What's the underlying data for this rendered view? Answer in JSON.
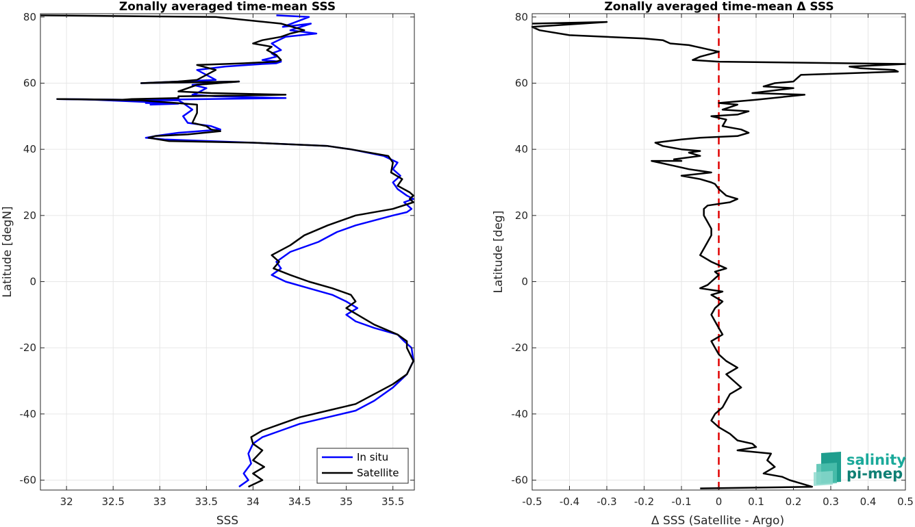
{
  "chart_data": [
    {
      "type": "line",
      "title": "Zonally averaged time-mean SSS",
      "xlabel": "SSS",
      "ylabel": "Latitude [degN]",
      "xlim": [
        31.72,
        35.73
      ],
      "ylim": [
        -63,
        81
      ],
      "xticks": [
        32,
        32.5,
        33,
        33.5,
        34,
        34.5,
        35,
        35.5
      ],
      "yticks": [
        -60,
        -40,
        -20,
        0,
        20,
        40,
        60,
        80
      ],
      "grid": true,
      "legend": "bottom-right",
      "orientation": "latitude on y-axis",
      "series": [
        {
          "name": "In situ",
          "color": "#0000ff",
          "x": [
            34.25,
            34.6,
            34.32,
            34.62,
            34.4,
            34.68,
            34.35,
            34.2,
            34.3,
            34.2,
            34.25,
            34.1,
            34.3,
            34.25,
            34.1,
            33.95,
            33.7,
            33.4,
            33.6,
            32.8,
            33.85,
            33.35,
            33.5,
            33.4,
            33.35,
            33.6,
            34.35,
            32.95,
            32.85,
            33,
            32.85,
            33.2,
            32.9,
            33.1,
            32.3,
            31.9,
            33.2,
            33.25,
            33.35,
            33.25,
            33.3,
            33.55,
            33.65,
            33.2,
            32.95,
            32.85,
            33.05,
            34.0,
            34.8,
            35.05,
            35.4,
            35.55,
            35.5,
            35.58,
            35.5,
            35.55,
            35.65,
            35.72,
            35.62,
            35.7,
            35.65,
            35.5,
            35.1,
            34.9,
            34.7,
            34.4,
            34.25,
            34.3,
            34.2,
            34.35,
            34.6,
            34.85,
            35.0,
            35.12,
            35.0,
            35.1,
            35.3,
            35.55,
            35.62,
            35.7,
            35.72,
            35.65,
            35.5,
            35.3,
            35.1,
            34.8,
            34.5,
            34.3,
            34.1,
            34.0,
            33.95,
            33.98,
            33.9,
            33.95,
            33.85
          ],
          "y": [
            80.5,
            80,
            77,
            78,
            76,
            75,
            74,
            72,
            70,
            69,
            68,
            67,
            66.5,
            66,
            65.8,
            65.5,
            65,
            64,
            61,
            60,
            60.5,
            59.5,
            58.5,
            57,
            56.5,
            56,
            55.5,
            55,
            54.8,
            54.5,
            54,
            53.8,
            53.5,
            54,
            55,
            55.2,
            54.8,
            54,
            52,
            50,
            48,
            47,
            46,
            45,
            44,
            43.5,
            43,
            42,
            41,
            40,
            38,
            36,
            34,
            32,
            30,
            28,
            26,
            25,
            24,
            22,
            21,
            20,
            17,
            15,
            12,
            9,
            6,
            4,
            2,
            0,
            -2,
            -4,
            -6,
            -8,
            -10,
            -12,
            -14,
            -16,
            -18,
            -20,
            -24,
            -28,
            -32,
            -36,
            -39,
            -41,
            -43,
            -45,
            -47,
            -49,
            -52,
            -55,
            -58,
            -60,
            -62
          ]
        },
        {
          "name": "Satellite",
          "color": "#000000",
          "x": [
            31.72,
            33.6,
            34.3,
            34.55,
            34.4,
            34.3,
            34.1,
            34.0,
            34.2,
            34.15,
            34.25,
            34.3,
            34.25,
            33.9,
            33.7,
            33.4,
            33.6,
            33.4,
            33.2,
            32.8,
            33.85,
            33.4,
            33.3,
            33.25,
            33.2,
            33.55,
            34.35,
            33.2,
            33.2,
            32.7,
            32.6,
            31.9,
            32.8,
            33.4,
            33.4,
            33.35,
            33.5,
            33.55,
            33.65,
            33.3,
            32.95,
            32.88,
            33.1,
            34.0,
            34.8,
            35.05,
            35.45,
            35.5,
            35.48,
            35.6,
            35.55,
            35.68,
            35.72,
            35.68,
            35.72,
            35.5,
            35.1,
            34.8,
            34.55,
            34.4,
            34.2,
            34.28,
            34.22,
            34.4,
            34.6,
            34.85,
            35.05,
            35.1,
            35.0,
            35.12,
            35.3,
            35.55,
            35.65,
            35.65,
            35.72,
            35.65,
            35.5,
            35.3,
            35.1,
            34.8,
            34.5,
            34.3,
            34.1,
            33.98,
            34.0,
            34.1,
            34.0,
            34.12,
            34.0,
            34.1,
            33.95
          ],
          "y": [
            80.5,
            80,
            78,
            76,
            75,
            74,
            73,
            72,
            71,
            70,
            68.5,
            67,
            66.5,
            66,
            65.8,
            65.5,
            64,
            61,
            60.5,
            60,
            60.5,
            59.5,
            58.5,
            58,
            57.5,
            57,
            56.5,
            56,
            55.5,
            55.2,
            55,
            55.2,
            54.8,
            53.5,
            51,
            48,
            47,
            46,
            45.5,
            44.5,
            44,
            43.5,
            42.5,
            42,
            41,
            40,
            38,
            36,
            33,
            31,
            29,
            27,
            26,
            25,
            24,
            22,
            20,
            17,
            14,
            11,
            8,
            6,
            4,
            2,
            0,
            -2,
            -4,
            -6,
            -8,
            -10,
            -13,
            -16,
            -18,
            -20,
            -24,
            -28,
            -31,
            -34,
            -37,
            -39,
            -41,
            -43,
            -45,
            -47,
            -49,
            -51,
            -54,
            -56,
            -58,
            -60,
            -62
          ]
        }
      ]
    },
    {
      "type": "line",
      "title": "Zonally averaged time-mean Δ SSS",
      "xlabel": "Δ SSS (Satellite - Argo)",
      "ylabel": "Latitude [deg]",
      "xlim": [
        -0.5,
        0.5
      ],
      "ylim": [
        -63,
        81
      ],
      "xticks": [
        -0.5,
        -0.4,
        -0.3,
        -0.2,
        -0.1,
        0,
        0.1,
        0.2,
        0.3,
        0.4,
        0.5
      ],
      "yticks": [
        -60,
        -40,
        -20,
        0,
        20,
        40,
        60,
        80
      ],
      "grid": true,
      "reference_line": {
        "x": 0,
        "color": "#e00000",
        "style": "dashed"
      },
      "series": [
        {
          "name": "",
          "color": "#000000",
          "x": [
            -0.5,
            -0.3,
            -0.5,
            -0.48,
            -0.4,
            -0.2,
            -0.15,
            -0.13,
            -0.08,
            -0.02,
            0,
            -0.05,
            -0.07,
            0,
            0.5,
            0.35,
            0.38,
            0.47,
            0.48,
            0.22,
            0.2,
            0.15,
            0.12,
            0.2,
            0.09,
            0.23,
            0.1,
            0,
            0.05,
            0.01,
            0.08,
            0.05,
            -0.02,
            0.02,
            0.01,
            0.06,
            0.08,
            0.05,
            -0.05,
            -0.1,
            -0.17,
            -0.15,
            -0.1,
            -0.05,
            -0.08,
            -0.05,
            -0.12,
            -0.1,
            -0.18,
            -0.12,
            -0.08,
            -0.02,
            -0.1,
            -0.05,
            -0.02,
            -0.01,
            0,
            0.02,
            0.05,
            0.03,
            -0.03,
            -0.04,
            -0.04,
            -0.03,
            -0.02,
            -0.02,
            -0.03,
            -0.04,
            -0.05,
            -0.02,
            0.02,
            -0.01,
            0,
            -0.01,
            -0.02,
            -0.03,
            -0.05,
            0.01,
            -0.02,
            0.01,
            -0.01,
            -0.02,
            -0.01,
            0,
            0.01,
            -0.02,
            -0.01,
            0.0,
            0.02,
            0.05,
            0.02,
            0.04,
            0.06,
            0.03,
            0.02,
            0.01,
            -0.01,
            -0.02,
            0.0,
            0.03,
            0.05,
            0.09,
            0.1,
            0.05,
            0.14,
            0.13,
            0.15,
            0.12,
            0.17,
            0.19,
            0.22,
            0.25,
            -0.05
          ],
          "y": [
            78,
            78.5,
            77,
            76,
            74.5,
            73.5,
            73,
            72,
            71.5,
            70,
            69.5,
            68,
            67,
            66.5,
            65.8,
            65,
            64.5,
            64,
            63.5,
            62.5,
            60.5,
            60,
            59,
            58.5,
            57,
            56.5,
            55,
            54,
            53.5,
            52,
            51.5,
            50.5,
            50,
            49,
            47,
            46,
            45,
            44,
            43.5,
            43,
            42,
            41,
            40,
            39.5,
            39,
            38,
            37,
            36.5,
            36.5,
            35,
            34,
            33,
            32,
            31,
            30,
            29.5,
            28,
            26,
            25,
            24,
            23,
            22,
            20,
            18,
            16,
            14,
            12,
            10,
            8,
            6,
            4,
            3,
            2,
            1,
            0,
            -1,
            -2,
            -3,
            -4,
            -6,
            -8,
            -10,
            -12,
            -14,
            -16,
            -18,
            -20,
            -22,
            -24,
            -26,
            -28,
            -30,
            -32,
            -34,
            -36,
            -38,
            -40,
            -42,
            -44,
            -46,
            -48,
            -49,
            -50,
            -51,
            -52,
            -54,
            -56,
            -58,
            -59,
            -60,
            -61,
            -62,
            -62.5
          ]
        }
      ]
    }
  ],
  "logo": {
    "line1": "salinity",
    "line2": "pi-mep",
    "color": "#1aa99a"
  }
}
